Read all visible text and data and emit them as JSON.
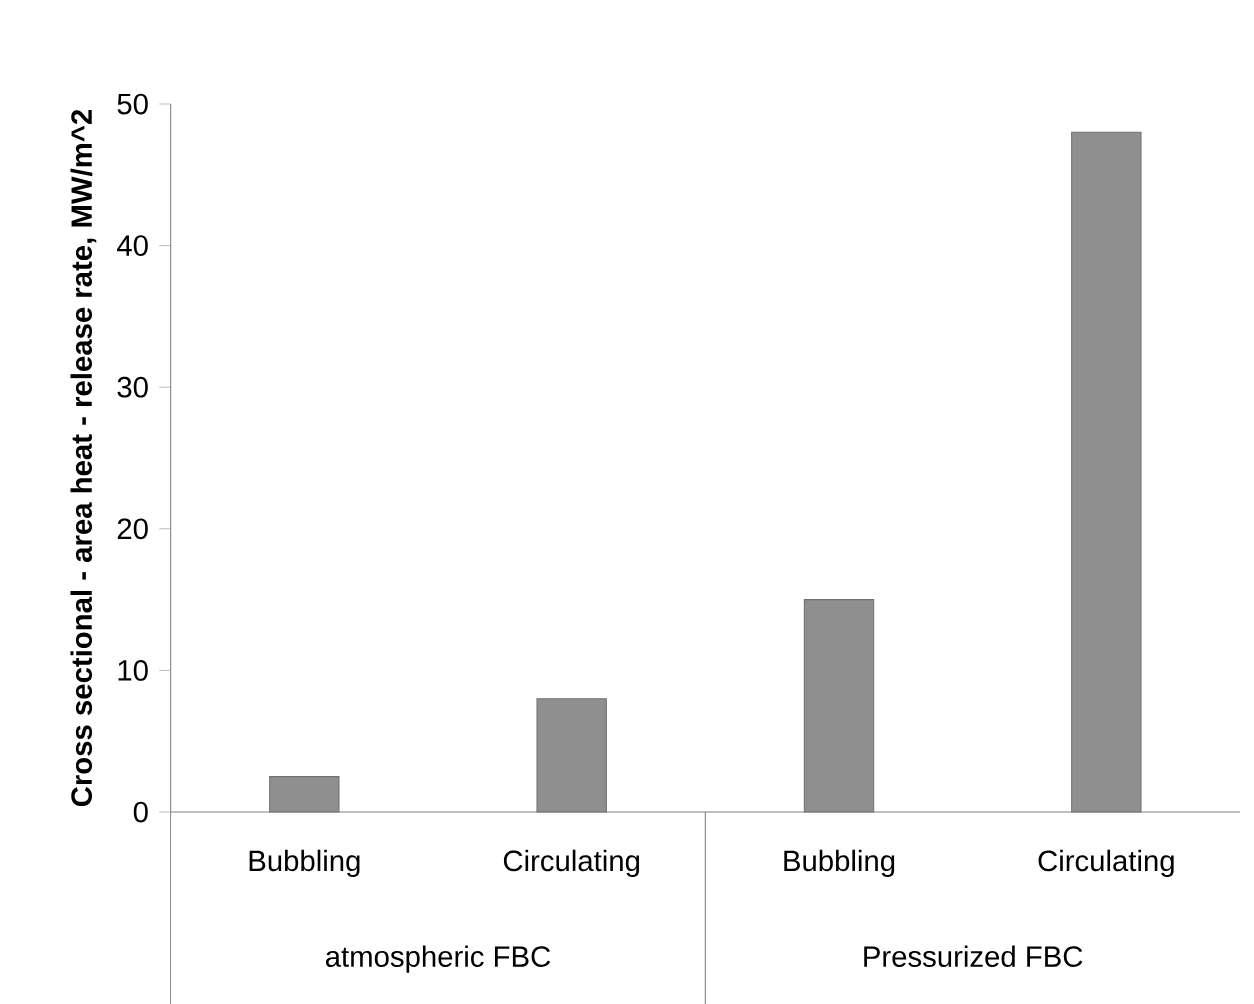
{
  "chart_data": {
    "type": "bar",
    "ylabel": "Cross sectional - area heat - release rate, MW/m^2",
    "categories": [
      "Bubbling",
      "Circulating",
      "Bubbling",
      "Circulating"
    ],
    "values": [
      2.5,
      8,
      15,
      48
    ],
    "color": "#8f8f8f",
    "ylim": [
      0,
      50
    ],
    "yticks": [
      0,
      10,
      20,
      30,
      40,
      50
    ],
    "annotations": [
      "atmospheric FBC",
      "Pressurized FBC"
    ]
  }
}
